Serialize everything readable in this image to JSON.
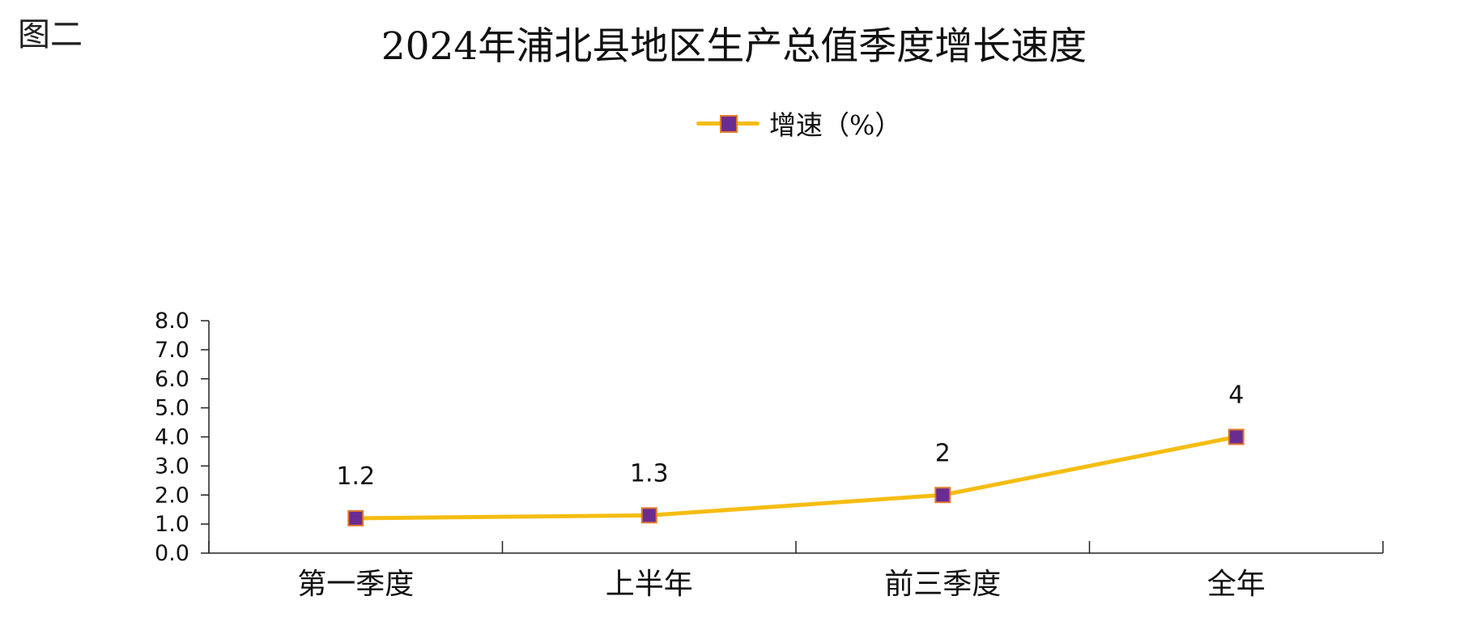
{
  "figure_label": "图二",
  "colors": {
    "line": "#f5bd12",
    "marker_fill": "#6a2c91",
    "marker_border": "#e07b2a",
    "axis": "#222222"
  },
  "chart_data": {
    "type": "line",
    "title": "2024年浦北县地区生产总值季度增长速度",
    "categories": [
      "第一季度",
      "上半年",
      "前三季度",
      "全年"
    ],
    "series": [
      {
        "name": "增速（%）",
        "values": [
          1.2,
          1.3,
          2,
          4
        ],
        "data_labels": [
          "1.2",
          "1.3",
          "2",
          "4"
        ]
      }
    ],
    "ylim": [
      0,
      8
    ],
    "yticks": [
      "0.0",
      "1.0",
      "2.0",
      "3.0",
      "4.0",
      "5.0",
      "6.0",
      "7.0",
      "8.0"
    ],
    "xlabel": "",
    "ylabel": "",
    "grid": false,
    "legend_position": "top-center",
    "marker": "square"
  }
}
